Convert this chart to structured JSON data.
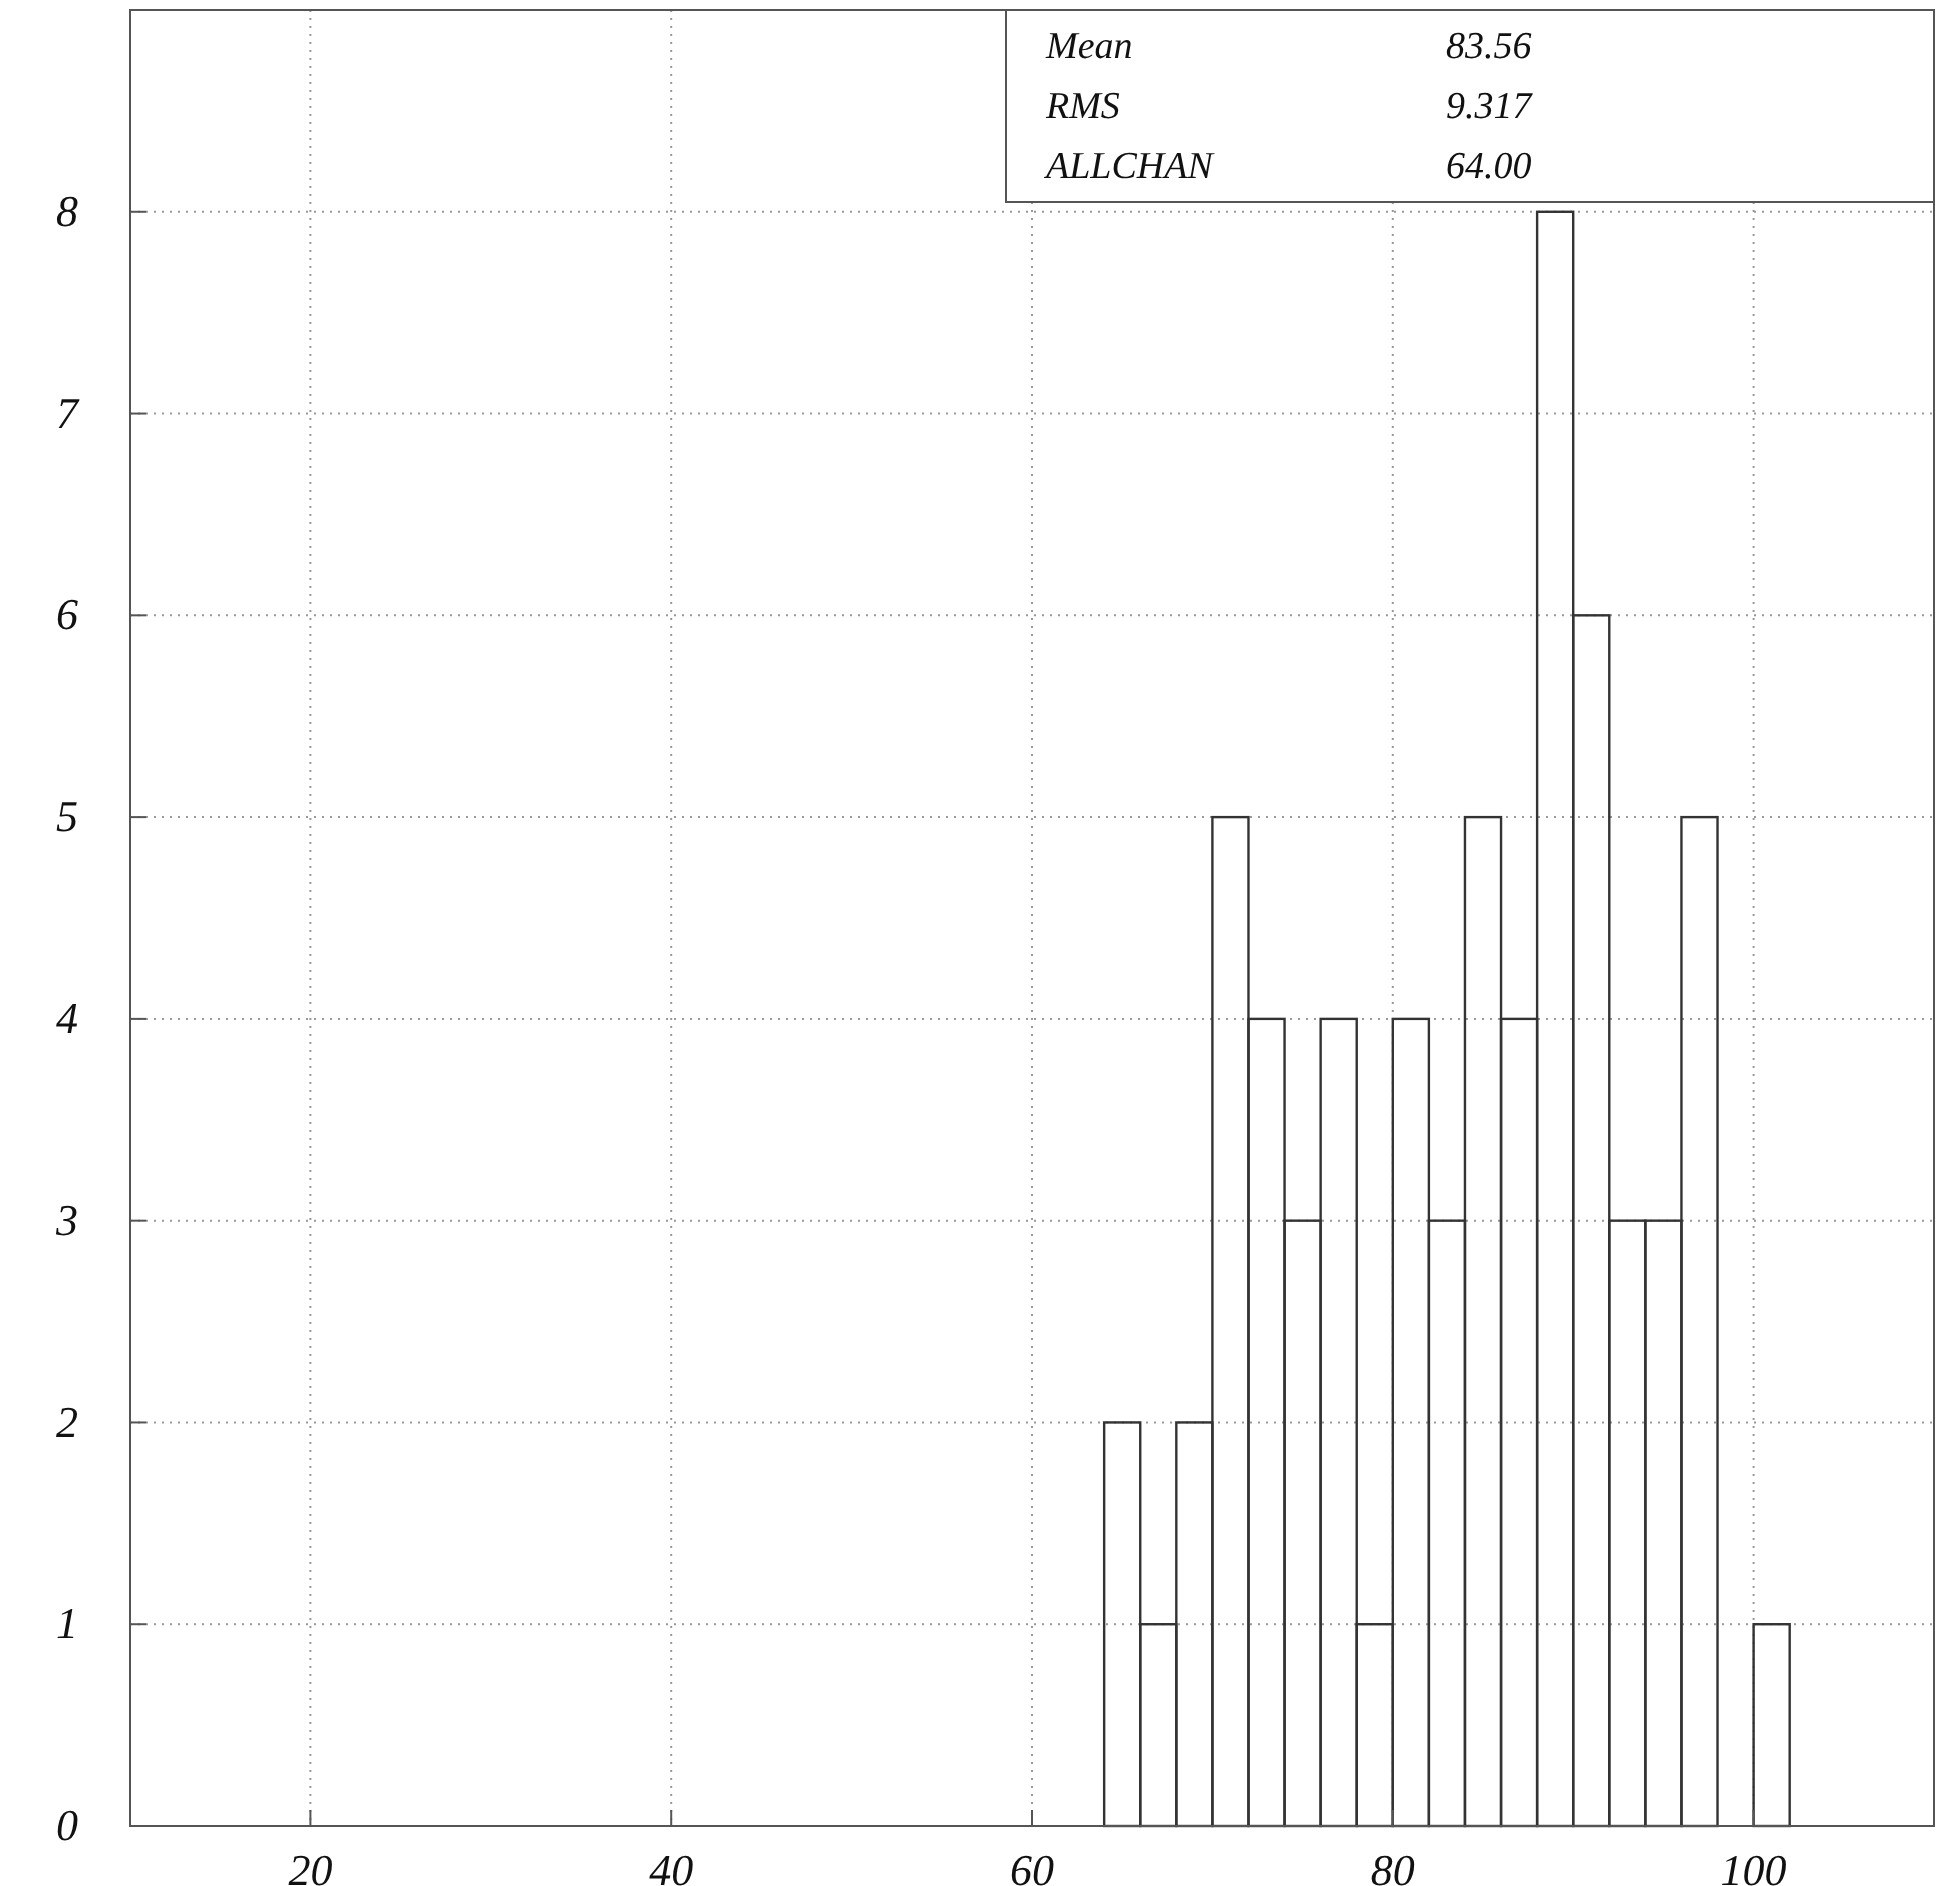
{
  "chart_data": {
    "type": "histogram",
    "bins": [
      64,
      66,
      68,
      70,
      72,
      74,
      76,
      78,
      80,
      82,
      84,
      86,
      88,
      90,
      92,
      94,
      96,
      98,
      100,
      102
    ],
    "values": [
      2,
      1,
      2,
      5,
      4,
      3,
      4,
      1,
      4,
      3,
      5,
      4,
      8,
      6,
      3,
      3,
      5,
      0,
      1
    ],
    "color": "#333333",
    "xlim": [
      10,
      110
    ],
    "xticks": [
      20,
      40,
      60,
      80,
      100
    ],
    "ylim": [
      0,
      9
    ],
    "yticks": [
      0,
      1,
      2,
      3,
      4,
      5,
      6,
      7,
      8
    ],
    "grid": true,
    "annotations": [
      "Mean",
      "83.56",
      "RMS",
      "9.317",
      "ALLCHAN",
      "64.00"
    ]
  }
}
